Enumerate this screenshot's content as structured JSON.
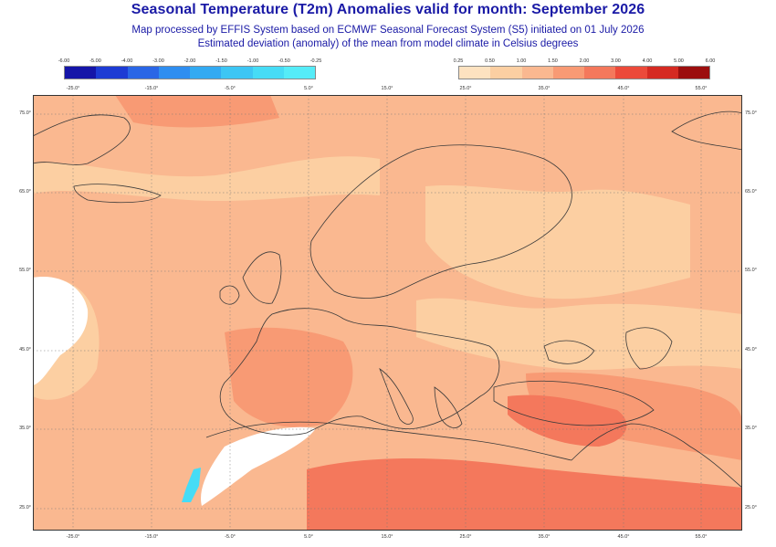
{
  "header": {
    "title": "Seasonal Temperature (T2m) Anomalies valid for month: September 2026",
    "subtitle_1": "Map processed by EFFIS System based on ECMWF Seasonal Forecast System (S5) initiated on 01 July 2026",
    "subtitle_2": "Estimated deviation (anomaly) of the mean from model climate in Celsius degrees"
  },
  "legend_cold": {
    "labels": [
      "-6.00",
      "-5.00",
      "-4.00",
      "-3.00",
      "-2.00",
      "-1.50",
      "-1.00",
      "-0.50",
      "-0.25"
    ],
    "colors": [
      "#1515a8",
      "#1d3bd4",
      "#2a66e6",
      "#2f8ef0",
      "#33aaf2",
      "#3dc6f4",
      "#46dcf6",
      "#55ecf8"
    ]
  },
  "legend_warm": {
    "labels": [
      "0.25",
      "0.50",
      "1.00",
      "1.50",
      "2.00",
      "3.00",
      "4.00",
      "5.00",
      "6.00"
    ],
    "colors": [
      "#fde2c0",
      "#fccfa2",
      "#fab890",
      "#f89a74",
      "#f4785c",
      "#ec4a3a",
      "#d52a22",
      "#9c0e0e"
    ]
  },
  "map": {
    "lon_ticks": [
      "-25.0°",
      "-15.0°",
      "-5.0°",
      "5.0°",
      "15.0°",
      "25.0°",
      "35.0°",
      "45.0°",
      "55.0°"
    ],
    "lat_ticks": [
      "75.0°",
      "65.0°",
      "55.0°",
      "45.0°",
      "35.0°",
      "25.0°"
    ],
    "colors": {
      "base": "#fab890",
      "light": "#fccfa2",
      "mid": "#f89a74",
      "strong": "#f4785c",
      "neutral": "#ffffff",
      "cool": "#46dcf6"
    }
  }
}
